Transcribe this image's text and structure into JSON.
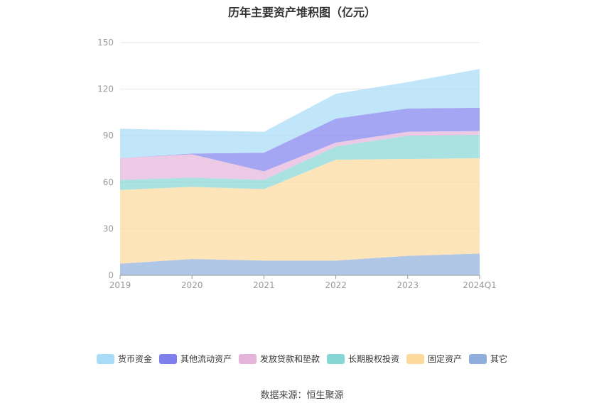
{
  "chart_data": {
    "type": "area",
    "stacked": true,
    "title": "历年主要资产堆积图（亿元）",
    "categories": [
      "2019",
      "2020",
      "2021",
      "2022",
      "2023",
      "2024Q1"
    ],
    "ylim": [
      0,
      150
    ],
    "yticks": [
      "0",
      "30",
      "60",
      "90",
      "120",
      "150"
    ],
    "grid": true,
    "legend_position": "bottom",
    "series": [
      {
        "name": "其它",
        "color": "#8faedc",
        "values": [
          7.5,
          10.5,
          9.5,
          9.5,
          12.5,
          14
        ]
      },
      {
        "name": "固定资产",
        "color": "#fdd99b",
        "values": [
          47.5,
          46.5,
          46,
          65,
          62.5,
          61.5
        ]
      },
      {
        "name": "长期股权投资",
        "color": "#86d6d6",
        "values": [
          6.5,
          6,
          6,
          8.5,
          15,
          15
        ]
      },
      {
        "name": "发放贷款和垫款",
        "color": "#e4b4da",
        "values": [
          14,
          15,
          5.5,
          2.5,
          2.5,
          2.5
        ]
      },
      {
        "name": "其他流动资产",
        "color": "#7f80ee",
        "values": [
          0,
          0.5,
          12,
          15.5,
          15,
          15
        ]
      },
      {
        "name": "货币资金",
        "color": "#a8dcf7",
        "values": [
          19,
          15,
          13.5,
          16,
          17,
          25
        ]
      }
    ]
  },
  "source_text": "数据来源：恒生聚源"
}
